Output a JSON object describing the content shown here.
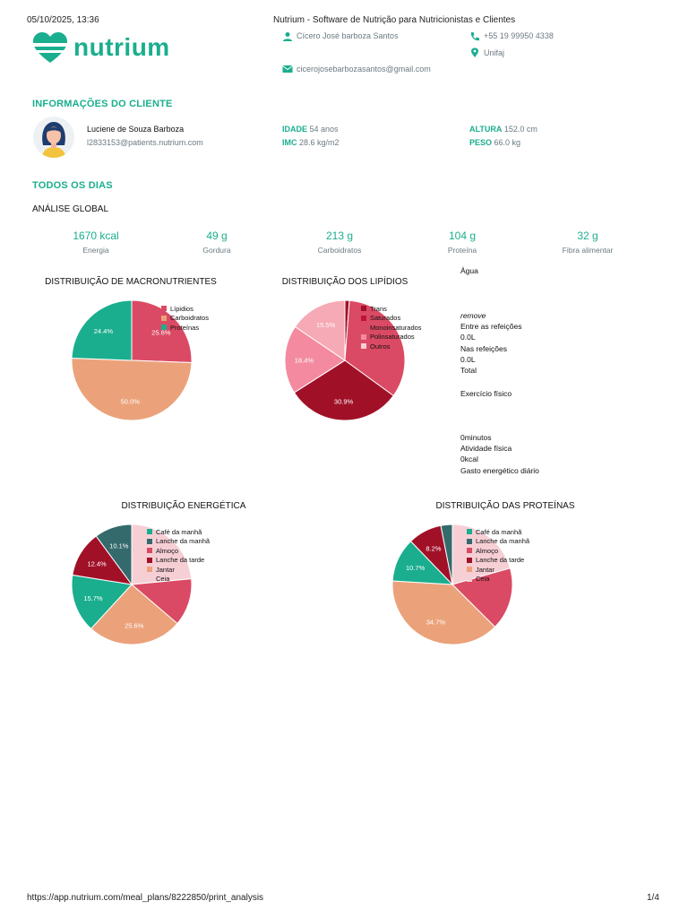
{
  "header": {
    "datetime": "05/10/2025, 13:36",
    "page_title": "Nutrium - Software de Nutrição para Nutricionistas e Clientes",
    "logo_text": "nutrium"
  },
  "nutritionist": {
    "name": "Cícero José barboza Santos",
    "phone": "+55 19 99950 4338",
    "location": "Unifaj",
    "email": "cicerojosebarbozasantos@gmail.com"
  },
  "client_section": {
    "title": "INFORMAÇÕES DO CLIENTE",
    "name": "Luciene de Souza Barboza",
    "email": "l2833153@patients.nutrium.com",
    "idade_label": "IDADE",
    "idade_value": "54 anos",
    "imc_label": "IMC",
    "imc_value": "28.6 kg/m2",
    "altura_label": "ALTURA",
    "altura_value": "152.0 cm",
    "peso_label": "PESO",
    "peso_value": "66.0 kg"
  },
  "days_section": {
    "title": "TODOS OS DIAS",
    "subtitle": "ANÁLISE GLOBAL",
    "metrics": [
      {
        "value": "1670 kcal",
        "label": "Energia"
      },
      {
        "value": "49 g",
        "label": "Gordura"
      },
      {
        "value": "213 g",
        "label": "Carboidratos"
      },
      {
        "value": "104 g",
        "label": "Proteína"
      },
      {
        "value": "32 g",
        "label": "Fibra alimentar"
      }
    ]
  },
  "side_panel": {
    "agua_label": "Água",
    "remove": "remove",
    "entre_refeicoes": "Entre as refeições",
    "entre_value": "0.0L",
    "nas_refeicoes": "Nas refeições",
    "nas_value": "0.0L",
    "total": "Total",
    "exercicio": "Exercício físico",
    "minutos": "0minutos",
    "atividade": "Atividade física",
    "kcal": "0kcal",
    "gasto": "Gasto energético diário"
  },
  "colors": {
    "teal": "#1aae8e",
    "red": "#db4a64",
    "orange": "#eba27a",
    "darkteal": "#356a6c",
    "maroon": "#a01128",
    "crimson": "#c0123d",
    "pink": "#f38aa0",
    "lightpink": "#f6aab6",
    "palepink": "#f6cfd5"
  },
  "chart_data": [
    {
      "type": "pie",
      "title": "DISTRIBUIÇÃO DE MACRONUTRIENTES",
      "series": [
        {
          "name": "Lípidios",
          "value": 25.6,
          "label": "25.6%",
          "color": "#db4a64"
        },
        {
          "name": "Carboidratos",
          "value": 50.0,
          "label": "50.0%",
          "color": "#eba27a"
        },
        {
          "name": "Proteínas",
          "value": 24.4,
          "label": "24.4%",
          "color": "#1aae8e"
        }
      ],
      "legend": "top-right"
    },
    {
      "type": "pie",
      "title": "DISTRIBUIÇÃO DOS LIPÍDIOS",
      "series": [
        {
          "name": "Trans",
          "value": 1.2,
          "label": "",
          "color": "#a01128"
        },
        {
          "name": "Saturados",
          "value": 33.7,
          "label": "",
          "color": "#db4a64"
        },
        {
          "name": "Monoinsaturados",
          "value": 30.9,
          "label": "30.9%",
          "color": "#a01128"
        },
        {
          "name": "Polinsaturados",
          "value": 18.4,
          "label": "18.4%",
          "color": "#f38aa0"
        },
        {
          "name": "Outros",
          "value": 15.5,
          "label": "15.5%",
          "color": "#f6aab6"
        }
      ],
      "legend_colors": [
        "#a01128",
        "#c0123d",
        "#db4a64",
        "#f38aa0",
        "#f6cfd5"
      ],
      "legend": "top-right"
    },
    {
      "type": "pie",
      "title": "DISTRIBUIÇÃO ENERGÉTICA",
      "series": [
        {
          "name": "Café da manhã",
          "value": 23.5,
          "label": "",
          "color": "#f6cfd5"
        },
        {
          "name": "Lanche da manhã",
          "value": 12.8,
          "label": "",
          "color": "#db4a64"
        },
        {
          "name": "Almoço",
          "value": 25.6,
          "label": "25.6%",
          "color": "#eba27a"
        },
        {
          "name": "Lanche da tarde",
          "value": 15.7,
          "label": "15.7%",
          "color": "#1aae8e"
        },
        {
          "name": "Jantar",
          "value": 12.4,
          "label": "12.4%",
          "color": "#a01128"
        },
        {
          "name": "Ceia",
          "value": 10.1,
          "label": "10.1%",
          "color": "#356a6c"
        }
      ],
      "legend_colors": [
        "#1aae8e",
        "#356a6c",
        "#db4a64",
        "#a01128",
        "#eba27a",
        "#f6cfd5"
      ],
      "legend": "top-right"
    },
    {
      "type": "pie",
      "title": "DISTRIBUIÇÃO DAS PROTEÍNAS",
      "series": [
        {
          "name": "Café da manhã",
          "value": 18.6,
          "label": "",
          "color": "#f6cfd5"
        },
        {
          "name": "Lanche da manhã",
          "value": 15.2,
          "label": "",
          "color": "#db4a64"
        },
        {
          "name": "Almoço",
          "value": 34.7,
          "label": "34.7%",
          "color": "#eba27a"
        },
        {
          "name": "Lanche da tarde",
          "value": 10.7,
          "label": "10.7%",
          "color": "#1aae8e"
        },
        {
          "name": "Jantar",
          "value": 8.2,
          "label": "8.2%",
          "color": "#a01128"
        },
        {
          "name": "Ceia",
          "value": 2.8,
          "label": "",
          "color": "#356a6c"
        }
      ],
      "legend_colors": [
        "#1aae8e",
        "#356a6c",
        "#db4a64",
        "#a01128",
        "#eba27a",
        "#f6cfd5"
      ],
      "legend": "top-right"
    }
  ],
  "footer": {
    "url": "https://app.nutrium.com/meal_plans/8222850/print_analysis",
    "page": "1/4"
  }
}
